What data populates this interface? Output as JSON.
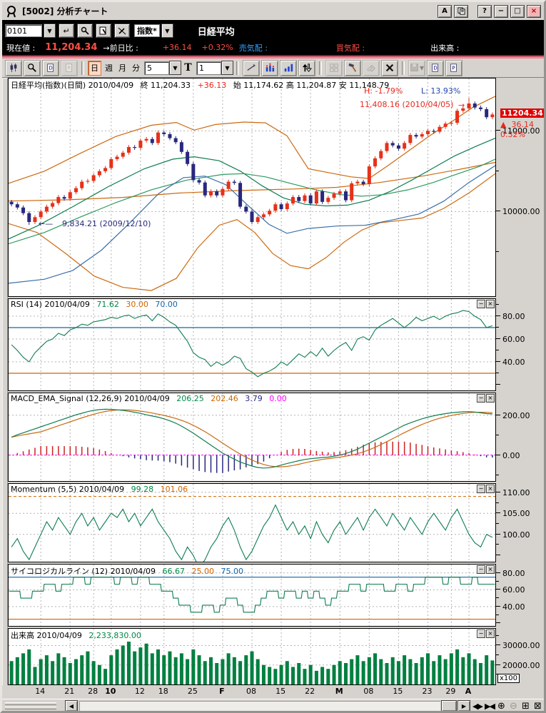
{
  "window": {
    "title": "[5002] 分析チャート",
    "buttons": {
      "a": "A",
      "help": "?",
      "minimize": "−",
      "maximize": "□",
      "close": "×"
    }
  },
  "symbol_bar": {
    "code": "0101",
    "category": "指数*",
    "name": "日経平均"
  },
  "quote_bar": {
    "price_label": "現在値 :",
    "price": "11,204.34",
    "change_label": "→前日比 :",
    "change": "+36.14",
    "change_pct": "+0.32%",
    "ask_label": "売気配 :",
    "bid_label": "買気配 :",
    "volume_label": "出来高 :"
  },
  "toolbar": {
    "period_day": "日",
    "period_week": "週",
    "period_month": "月",
    "period_minute": "分",
    "bars_select": "5",
    "text_button": "T",
    "interval_select": "1"
  },
  "panel_buttons": {
    "minimize": "−",
    "close": "×"
  },
  "panels": {
    "main": {
      "title": "日経平均(指数)(日間) 2010/04/09",
      "close_part": "終 11,204.33",
      "close_change": "+36.13",
      "ohl_part": "始 11,174.62 高 11,204.87 安 11,148.79",
      "high_pct": "H: -1.79%",
      "low_pct": "L: 13.93%",
      "peak_annotation": "11,408.16 (2010/04/05)",
      "trough_annotation": "9,834.21 (2009/12/10)",
      "price_box": "11204.34",
      "price_change_arrow": "▲",
      "price_change": "36.14",
      "price_pct": "0.32%",
      "axis": [
        {
          "v": 11000,
          "t": "11000.00"
        },
        {
          "v": 10000,
          "t": "10000.00"
        }
      ]
    },
    "rsi": {
      "title": "RSI (14) 2010/04/09",
      "v1": "71.62",
      "v2": "30.00",
      "v3": "70.00",
      "axis": [
        {
          "v": 80,
          "t": "80.00"
        },
        {
          "v": 60,
          "t": "60.00"
        },
        {
          "v": 40,
          "t": "40.00"
        }
      ]
    },
    "macd": {
      "title": "MACD_EMA_Signal (12,26,9) 2010/04/09",
      "v1": "206.25",
      "v2": "202.46",
      "v3": "3.79",
      "v4": "0.00",
      "axis": [
        {
          "v": 200,
          "t": "200.00"
        },
        {
          "v": 0,
          "t": "0.00"
        }
      ]
    },
    "mom": {
      "title": "Momentum (5,5) 2010/04/09",
      "v1": "99.28",
      "v2": "101.06",
      "axis": [
        {
          "v": 110,
          "t": "110.00"
        },
        {
          "v": 105,
          "t": "105.00"
        },
        {
          "v": 100,
          "t": "100.00"
        }
      ]
    },
    "psy": {
      "title": "サイコロジカルライン (12) 2010/04/09",
      "v1": "66.67",
      "v2": "25.00",
      "v3": "75.00",
      "axis": [
        {
          "v": 80,
          "t": "80.00"
        },
        {
          "v": 60,
          "t": "60.00"
        },
        {
          "v": 40,
          "t": "40.00"
        }
      ]
    },
    "vol": {
      "title": "出来高 2010/04/09",
      "v1": "2,233,830.00",
      "unit": "x100",
      "axis": [
        {
          "v": 30000,
          "t": "30000.00"
        },
        {
          "v": 20000,
          "t": "20000.00"
        }
      ]
    }
  },
  "xaxis": {
    "labels": [
      {
        "t": "14",
        "d": 5,
        "b": 0
      },
      {
        "t": "21",
        "d": 10,
        "b": 0
      },
      {
        "t": "28",
        "d": 14,
        "b": 0
      },
      {
        "t": "10",
        "d": 17,
        "b": 1
      },
      {
        "t": "12",
        "d": 22,
        "b": 0
      },
      {
        "t": "18",
        "d": 26,
        "b": 0
      },
      {
        "t": "25",
        "d": 31,
        "b": 0
      },
      {
        "t": "F",
        "d": 36,
        "b": 1
      },
      {
        "t": "08",
        "d": 41,
        "b": 0
      },
      {
        "t": "15",
        "d": 46,
        "b": 0
      },
      {
        "t": "22",
        "d": 51,
        "b": 0
      },
      {
        "t": "M",
        "d": 56,
        "b": 1
      },
      {
        "t": "08",
        "d": 61,
        "b": 0
      },
      {
        "t": "15",
        "d": 66,
        "b": 0
      },
      {
        "t": "23",
        "d": 71,
        "b": 0
      },
      {
        "t": "29",
        "d": 75,
        "b": 0
      },
      {
        "t": "A",
        "d": 78,
        "b": 1
      }
    ]
  },
  "scrollbar": {
    "left": "◀",
    "right": "▶",
    "expand": "◀▶",
    "collapse": "▶◀",
    "zoom_in": "⊕",
    "zoom_out": "⊖",
    "grid": "⊞",
    "close": "⊠"
  },
  "colors": {
    "up_candle": "#e63119",
    "down_candle": "#28287e",
    "band_orange": "#cc6a10",
    "ma_green_fast": "#0f7d50",
    "ma_green_slow": "#2e9960",
    "ma_blue": "#3a6fa8",
    "rsi_line": "#0f7d50",
    "ref_blue": "#1166aa",
    "ref_orange": "#cc6600",
    "macd_line": "#0f7d50",
    "signal_line": "#cc6a10",
    "hist_pos": "#cc2222",
    "hist_neg": "#28287e",
    "zero_magenta": "#ff00ff",
    "volume_bar": "#008040",
    "grid": "#b4b4b4"
  },
  "chart_data": {
    "type": "candlestick-with-indicators",
    "symbol": "日経平均",
    "date": "2010/04/09",
    "candles": {
      "first_open": 10120,
      "closes": [
        10090,
        10050,
        9980,
        9870,
        9930,
        10000,
        10060,
        10105,
        10180,
        10160,
        10240,
        10290,
        10370,
        10380,
        10450,
        10500,
        10540,
        10650,
        10680,
        10730,
        10800,
        10790,
        10880,
        10900,
        10850,
        10980,
        10960,
        10910,
        10860,
        10740,
        10590,
        10390,
        10360,
        10200,
        10250,
        10200,
        10280,
        10370,
        10355,
        10060,
        10000,
        9870,
        9930,
        9965,
        10010,
        10090,
        10030,
        10100,
        10180,
        10130,
        10200,
        10100,
        10250,
        10120,
        10170,
        10220,
        10250,
        10140,
        10350,
        10370,
        10340,
        10560,
        10660,
        10750,
        10850,
        10820,
        10780,
        10850,
        10950,
        10930,
        10960,
        11000,
        10990,
        11050,
        11090,
        11100,
        11250,
        11280,
        11340,
        11290,
        11270,
        11170,
        11204
      ],
      "low_override": {
        "index": 3,
        "value": 9834.21
      },
      "high_override": {
        "index": 78,
        "value": 11408.16
      }
    },
    "overlays": {
      "bollinger_upper": [
        [
          0,
          10350
        ],
        [
          50,
          10500
        ],
        [
          100,
          10720
        ],
        [
          150,
          10930
        ],
        [
          200,
          11070
        ],
        [
          235,
          11105
        ],
        [
          260,
          11010
        ],
        [
          290,
          11080
        ],
        [
          330,
          11110
        ],
        [
          360,
          11100
        ],
        [
          390,
          10940
        ],
        [
          420,
          10530
        ],
        [
          450,
          10480
        ],
        [
          480,
          10430
        ],
        [
          505,
          10410
        ],
        [
          530,
          10560
        ],
        [
          560,
          10750
        ],
        [
          590,
          10940
        ],
        [
          620,
          11110
        ],
        [
          650,
          11290
        ],
        [
          682,
          11430
        ]
      ],
      "bollinger_lower": [
        [
          0,
          9850
        ],
        [
          40,
          9740
        ],
        [
          80,
          9480
        ],
        [
          120,
          9200
        ],
        [
          160,
          9060
        ],
        [
          200,
          9020
        ],
        [
          235,
          9170
        ],
        [
          265,
          9550
        ],
        [
          295,
          9830
        ],
        [
          320,
          9900
        ],
        [
          345,
          9740
        ],
        [
          370,
          9480
        ],
        [
          395,
          9330
        ],
        [
          420,
          9290
        ],
        [
          445,
          9430
        ],
        [
          470,
          9620
        ],
        [
          495,
          9770
        ],
        [
          520,
          9860
        ],
        [
          550,
          9890
        ],
        [
          580,
          9920
        ],
        [
          610,
          10040
        ],
        [
          645,
          10230
        ],
        [
          682,
          10470
        ]
      ],
      "ma_mid_orange": [
        [
          0,
          10130
        ],
        [
          80,
          10145
        ],
        [
          160,
          10175
        ],
        [
          240,
          10230
        ],
        [
          320,
          10260
        ],
        [
          400,
          10280
        ],
        [
          460,
          10300
        ],
        [
          520,
          10360
        ],
        [
          580,
          10440
        ],
        [
          630,
          10520
        ],
        [
          682,
          10610
        ]
      ],
      "ma_fast_green": [
        [
          0,
          9660
        ],
        [
          40,
          9820
        ],
        [
          90,
          10060
        ],
        [
          140,
          10310
        ],
        [
          190,
          10530
        ],
        [
          230,
          10650
        ],
        [
          260,
          10680
        ],
        [
          295,
          10630
        ],
        [
          325,
          10500
        ],
        [
          355,
          10320
        ],
        [
          385,
          10170
        ],
        [
          415,
          10090
        ],
        [
          445,
          10070
        ],
        [
          475,
          10080
        ],
        [
          505,
          10140
        ],
        [
          535,
          10250
        ],
        [
          565,
          10390
        ],
        [
          595,
          10540
        ],
        [
          625,
          10690
        ],
        [
          655,
          10810
        ],
        [
          682,
          10910
        ]
      ],
      "ma_slow_green": [
        [
          0,
          9600
        ],
        [
          50,
          9740
        ],
        [
          100,
          9930
        ],
        [
          150,
          10110
        ],
        [
          200,
          10270
        ],
        [
          250,
          10390
        ],
        [
          300,
          10460
        ],
        [
          330,
          10470
        ],
        [
          360,
          10430
        ],
        [
          395,
          10350
        ],
        [
          430,
          10270
        ],
        [
          465,
          10210
        ],
        [
          495,
          10190
        ],
        [
          525,
          10210
        ],
        [
          560,
          10270
        ],
        [
          595,
          10360
        ],
        [
          630,
          10470
        ],
        [
          660,
          10560
        ],
        [
          682,
          10650
        ]
      ],
      "ma_long_blue": [
        [
          0,
          9110
        ],
        [
          50,
          9160
        ],
        [
          90,
          9270
        ],
        [
          130,
          9520
        ],
        [
          170,
          9860
        ],
        [
          210,
          10220
        ],
        [
          245,
          10420
        ],
        [
          275,
          10440
        ],
        [
          305,
          10330
        ],
        [
          335,
          10080
        ],
        [
          365,
          9840
        ],
        [
          390,
          9730
        ],
        [
          420,
          9790
        ],
        [
          460,
          9820
        ],
        [
          500,
          9830
        ],
        [
          540,
          9900
        ],
        [
          575,
          9970
        ],
        [
          610,
          10130
        ],
        [
          645,
          10360
        ],
        [
          682,
          10570
        ]
      ]
    },
    "rsi": {
      "upper_ref": 70,
      "lower_ref": 30,
      "values": [
        55,
        50,
        44,
        40,
        48,
        53,
        58,
        60,
        65,
        63,
        68,
        70,
        73,
        72,
        75,
        76,
        77,
        79,
        78,
        80,
        81,
        78,
        80,
        81,
        76,
        82,
        79,
        75,
        72,
        65,
        58,
        48,
        44,
        42,
        36,
        40,
        37,
        40,
        45,
        43,
        34,
        31,
        27,
        30,
        32,
        35,
        40,
        37,
        42,
        47,
        44,
        49,
        45,
        52,
        45,
        50,
        54,
        57,
        50,
        60,
        62,
        59,
        68,
        72,
        75,
        78,
        74,
        70,
        74,
        79,
        76,
        78,
        80,
        77,
        80,
        82,
        83,
        85,
        84,
        80,
        77,
        70,
        71.62
      ]
    },
    "macd": {
      "zero_ref": 0,
      "signal_window": 6,
      "hist_scale": 1.8,
      "values": [
        90,
        102,
        112,
        122,
        132,
        142,
        152,
        162,
        172,
        182,
        192,
        202,
        210,
        218,
        224,
        228,
        230,
        229,
        227,
        224,
        220,
        215,
        209,
        202,
        196,
        190,
        182,
        172,
        160,
        145,
        128,
        110,
        90,
        70,
        50,
        30,
        10,
        -5,
        -20,
        -35,
        -45,
        -55,
        -62,
        -65,
        -63,
        -58,
        -50,
        -42,
        -35,
        -28,
        -22,
        -18,
        -15,
        -12,
        -10,
        -5,
        0,
        8,
        18,
        30,
        45,
        60,
        75,
        90,
        105,
        120,
        135,
        150,
        162,
        172,
        182,
        190,
        197,
        203,
        208,
        212,
        215,
        217,
        218,
        216,
        212,
        208,
        206.25
      ]
    },
    "momentum": {
      "ref": 109,
      "values": [
        97,
        99,
        96,
        94,
        97,
        100,
        103,
        101,
        104,
        102,
        100,
        103,
        105,
        102,
        104,
        101,
        103,
        105,
        104,
        106,
        103,
        105,
        102,
        104,
        106,
        103,
        101,
        99,
        96,
        94,
        97,
        95,
        92,
        94,
        97,
        99,
        102,
        104,
        101,
        97,
        94,
        96,
        99,
        102,
        104,
        107,
        104,
        101,
        103,
        100,
        102,
        99,
        103,
        100,
        98,
        101,
        103,
        100,
        102,
        104,
        101,
        104,
        106,
        104,
        102,
        105,
        103,
        101,
        104,
        102,
        100,
        103,
        105,
        103,
        101,
        104,
        106,
        103,
        100,
        98,
        97,
        100,
        99.28
      ]
    },
    "psychological": {
      "upper_ref": 75,
      "lower_ref": 25,
      "values": [
        58.33,
        58.33,
        50,
        50,
        58.33,
        58.33,
        66.67,
        66.67,
        58.33,
        66.67,
        66.67,
        75,
        75,
        66.67,
        75,
        75,
        75,
        75,
        66.67,
        75,
        75,
        66.67,
        75,
        75,
        66.67,
        66.67,
        58.33,
        58.33,
        50,
        41.67,
        41.67,
        33.33,
        33.33,
        41.67,
        41.67,
        33.33,
        41.67,
        50,
        50,
        41.67,
        33.33,
        33.33,
        41.67,
        50,
        58.33,
        58.33,
        50,
        58.33,
        58.33,
        50,
        58.33,
        50,
        58.33,
        50,
        41.67,
        50,
        58.33,
        58.33,
        66.67,
        66.67,
        58.33,
        66.67,
        66.67,
        66.67,
        58.33,
        58.33,
        66.67,
        66.67,
        58.33,
        66.67,
        66.67,
        75,
        75,
        75,
        66.67,
        75,
        75,
        66.67,
        66.67,
        75,
        66.67,
        66.67,
        66.67
      ]
    },
    "volume": {
      "unit": "x100",
      "values": [
        22000,
        24000,
        26000,
        28000,
        19000,
        23000,
        25000,
        22000,
        26000,
        24000,
        21000,
        23000,
        25000,
        27000,
        22000,
        20000,
        18000,
        25000,
        28000,
        30000,
        32000,
        27000,
        29000,
        31000,
        26000,
        28000,
        25000,
        27000,
        24000,
        26000,
        23000,
        28000,
        25000,
        22000,
        24000,
        21000,
        23000,
        26000,
        24000,
        22000,
        25000,
        27000,
        23000,
        20000,
        19000,
        18000,
        20000,
        22000,
        19000,
        21000,
        18000,
        20000,
        17000,
        19000,
        18000,
        20000,
        22000,
        21000,
        23000,
        25000,
        22000,
        24000,
        26000,
        23000,
        21000,
        24000,
        22000,
        25000,
        23000,
        21000,
        24000,
        26000,
        22000,
        25000,
        23000,
        26000,
        28000,
        24000,
        26000,
        23000,
        21000,
        25000,
        22338
      ]
    }
  }
}
